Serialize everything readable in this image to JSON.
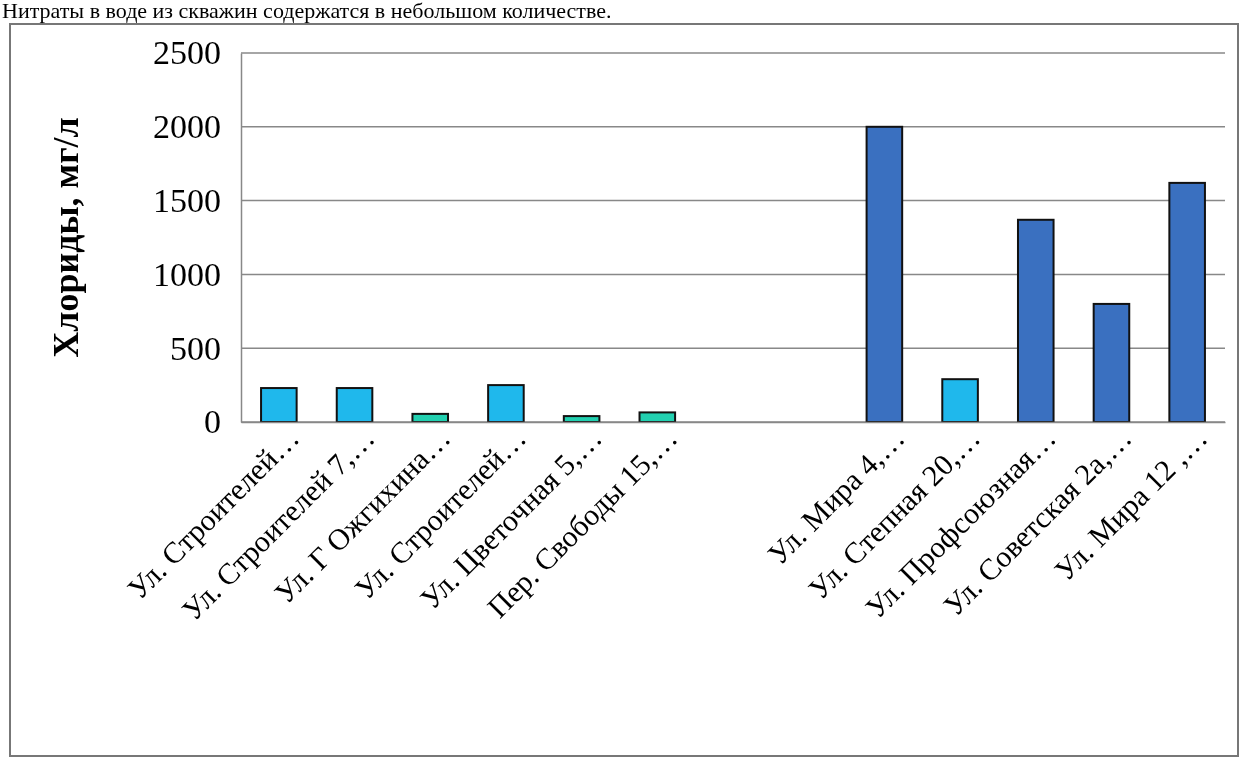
{
  "chart_data": {
    "type": "bar",
    "ylabel": "Хлориды, мг/л",
    "annotations": [
      "Нитраты в воде из скважин содержатся в небольшом количестве."
    ],
    "categories": [
      "Ул. Строителей…",
      "Ул. Строителей 7,…",
      "Ул. Г Ожгихина…",
      "Ул. Строителей…",
      "Ул. Цветочная 5,…",
      "Пер. Свободы 15,…",
      null,
      null,
      "Ул. Мира 4,…",
      "Ул. Степная 20,…",
      "Ул. Профсоюзная…",
      "Ул. Советская 2а,…",
      "Ул. Мира 12 ,…"
    ],
    "values": [
      230,
      230,
      55,
      250,
      40,
      65,
      null,
      null,
      2000,
      290,
      1370,
      800,
      1620
    ],
    "colors": [
      "#1fb8ec",
      "#1fb8ec",
      "#22d0b0",
      "#1fb8ec",
      "#22d0b0",
      "#22d0b0",
      null,
      null,
      "#3a70c0",
      "#1fb8ec",
      "#3a70c0",
      "#3a70c0",
      "#3a70c0"
    ],
    "ylim": [
      0,
      2500
    ],
    "yticks": [
      0,
      500,
      1000,
      1500,
      2000,
      2500
    ],
    "grid": "y"
  }
}
